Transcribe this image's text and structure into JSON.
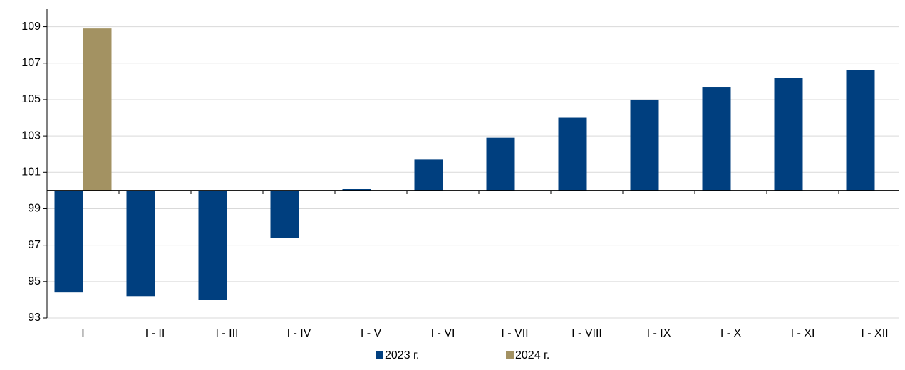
{
  "chart_data": {
    "type": "bar",
    "categories": [
      "I",
      "I - II",
      "I - III",
      "I - IV",
      "I - V",
      "I - VI",
      "I - VII",
      "I - VIII",
      "I - IX",
      "I - X",
      "I - XI",
      "I - XII"
    ],
    "series": [
      {
        "name": "2023 г.",
        "color": "#003f7f",
        "values": [
          94.4,
          94.2,
          94.0,
          97.4,
          100.1,
          101.7,
          102.9,
          104.0,
          105.0,
          105.7,
          106.2,
          106.6
        ]
      },
      {
        "name": "2024 г.",
        "color": "#a39262",
        "values": [
          108.9,
          null,
          null,
          null,
          null,
          null,
          null,
          null,
          null,
          null,
          null,
          null
        ]
      }
    ],
    "baseline": 100,
    "ylim": [
      93,
      110
    ],
    "yticks": [
      93,
      95,
      97,
      99,
      101,
      103,
      105,
      107,
      109
    ],
    "grid": true,
    "legend": "bottom"
  }
}
